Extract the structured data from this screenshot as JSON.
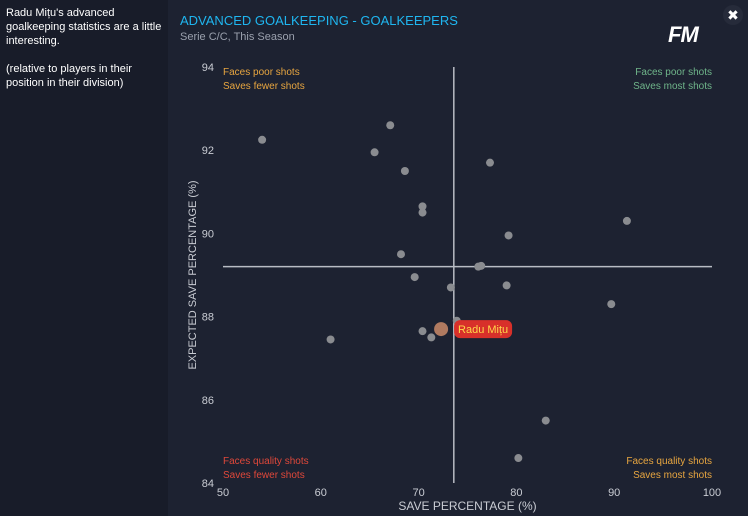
{
  "side_text": [
    "Radu Mițu's advanced goalkeeping statistics are a little interesting.",
    "(relative to players in their position in their division)"
  ],
  "header": {
    "title": "ADVANCED GOALKEEPING - GOALKEEPERS",
    "subtitle": "Serie C/C, This Season",
    "logo": "FM",
    "close": "✖"
  },
  "quadrants": {
    "top_left": [
      "Faces poor shots",
      "Saves fewer shots"
    ],
    "top_right": [
      "Faces poor shots",
      "Saves most shots"
    ],
    "bottom_left": [
      "Faces quality shots",
      "Saves fewer shots"
    ],
    "bottom_right": [
      "Faces quality shots",
      "Saves most shots"
    ]
  },
  "colors": {
    "point": "#8a8c90",
    "highlight": "#d8302a",
    "highlight_text": "#ffd84a",
    "axis": "#b8bcc4",
    "green": "#6fb58a",
    "orange": "#e8a640",
    "red": "#e0483a"
  },
  "chart_data": {
    "type": "scatter",
    "xlabel": "SAVE PERCENTAGE (%)",
    "ylabel": "EXPECTED SAVE PERCENTAGE (%)",
    "xlim": [
      50,
      100
    ],
    "ylim": [
      84,
      94
    ],
    "xticks": [
      50,
      60,
      70,
      80,
      90,
      100
    ],
    "yticks": [
      84,
      86,
      88,
      90,
      92,
      94
    ],
    "crosshair": {
      "x": 73.6,
      "y": 89.2
    },
    "points": [
      [
        54.0,
        92.25
      ],
      [
        67.1,
        92.6
      ],
      [
        65.5,
        91.95
      ],
      [
        68.6,
        91.5
      ],
      [
        77.3,
        91.7
      ],
      [
        70.4,
        90.65
      ],
      [
        70.4,
        90.5
      ],
      [
        91.3,
        90.3
      ],
      [
        79.2,
        89.95
      ],
      [
        68.2,
        89.5
      ],
      [
        76.1,
        89.2
      ],
      [
        76.4,
        89.22
      ],
      [
        69.6,
        88.95
      ],
      [
        73.3,
        88.7
      ],
      [
        79.0,
        88.75
      ],
      [
        89.7,
        88.3
      ],
      [
        70.4,
        87.65
      ],
      [
        71.3,
        87.5
      ],
      [
        73.9,
        87.9
      ],
      [
        61.0,
        87.45
      ],
      [
        83.0,
        85.5
      ],
      [
        80.2,
        84.6
      ]
    ],
    "highlight": {
      "label": "Radu Mițu",
      "x": 72.3,
      "y": 87.7
    }
  }
}
